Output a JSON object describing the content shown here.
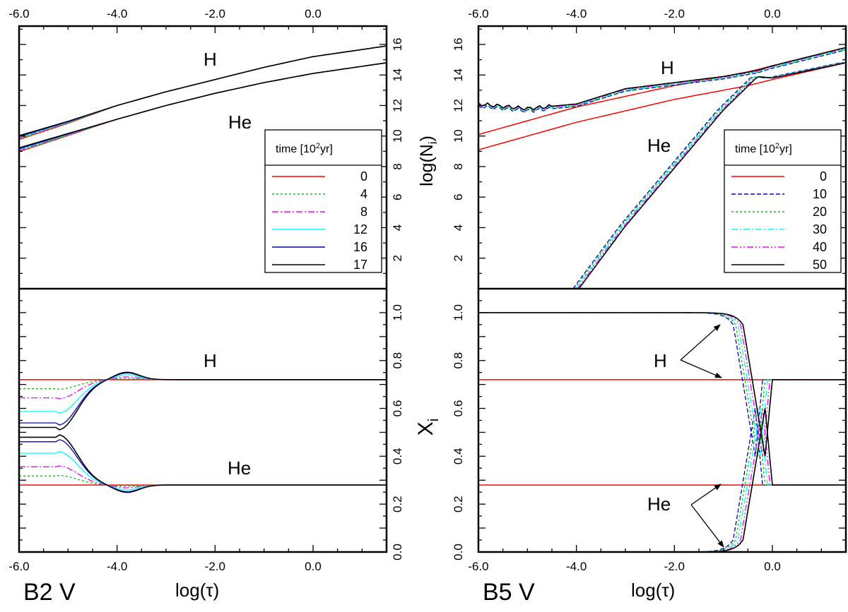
{
  "figure": {
    "colors": {
      "t0": "#ff0000",
      "t1": "#00cc00",
      "t2": "#ff00ff",
      "t3": "#00ffff",
      "t4": "#0000cc",
      "t5": "#000000"
    },
    "xlabel": "log(τ)",
    "left_title": "B2 V",
    "right_title": "B5 V",
    "ylabel_top": "log(N",
    "ylabel_top_sub": "i",
    "ylabel_top_close": ")",
    "ylabel_bottom": "X",
    "ylabel_bottom_sub": "i",
    "legend_title_pre": "time [10",
    "legend_title_sup": "2",
    "legend_title_post": "yr]"
  },
  "chart_data": [
    {
      "panel": "B2 V top",
      "type": "line",
      "xlim": [
        -6.0,
        1.5
      ],
      "ylim": [
        0,
        17.2
      ],
      "xticks": [
        "-6.0",
        "-4.0",
        "-2.0",
        "0.0"
      ],
      "yticks": [
        "2",
        "4",
        "6",
        "8",
        "10",
        "12",
        "14",
        "16"
      ],
      "ylabel": "log(N_i)",
      "labels": [
        "H",
        "He"
      ],
      "legend": [
        "0",
        "4",
        "8",
        "12",
        "16",
        "17"
      ],
      "series": [
        {
          "name": "H",
          "x": [
            -6.0,
            -5.0,
            -4.0,
            -3.0,
            -2.0,
            -1.0,
            0.0,
            1.5
          ],
          "y": [
            9.9,
            10.9,
            12.0,
            12.9,
            13.7,
            14.5,
            15.2,
            15.9
          ]
        },
        {
          "name": "He",
          "x": [
            -6.0,
            -5.0,
            -4.0,
            -3.0,
            -2.0,
            -1.0,
            0.0,
            1.5
          ],
          "y": [
            9.1,
            10.1,
            11.1,
            12.0,
            12.8,
            13.5,
            14.1,
            14.8
          ]
        }
      ]
    },
    {
      "panel": "B5 V top",
      "type": "line",
      "xlim": [
        -6.0,
        1.5
      ],
      "ylim": [
        0,
        17.2
      ],
      "xticks": [
        "-6.0",
        "-4.0",
        "-2.0",
        "0.0"
      ],
      "yticks": [
        "2",
        "4",
        "6",
        "8",
        "10",
        "12",
        "14",
        "16"
      ],
      "ylabel": "log(N_i)",
      "labels": [
        "H",
        "He"
      ],
      "legend": [
        "0",
        "10",
        "20",
        "30",
        "40",
        "50"
      ],
      "series": [
        {
          "name": "H t=0",
          "x": [
            -6.0,
            -4.0,
            -2.0,
            -0.5,
            0.0,
            1.5
          ],
          "y": [
            10.1,
            11.9,
            13.3,
            14.2,
            14.6,
            15.8
          ]
        },
        {
          "name": "He t=0",
          "x": [
            -6.0,
            -4.0,
            -2.0,
            -0.5,
            0.0,
            1.5
          ],
          "y": [
            9.1,
            10.9,
            12.4,
            13.3,
            13.7,
            14.8
          ]
        },
        {
          "name": "H t=50",
          "x": [
            -6.0,
            -5.0,
            -4.0,
            -3.0,
            -2.0,
            -1.0,
            -0.3,
            0.0,
            1.5
          ],
          "y": [
            12.1,
            11.8,
            12.1,
            13.1,
            13.5,
            13.9,
            14.3,
            14.6,
            15.8
          ]
        },
        {
          "name": "He t=50",
          "x": [
            -3.95,
            -3.0,
            -2.0,
            -1.0,
            -0.3,
            0.0,
            1.5
          ],
          "y": [
            0.0,
            4.1,
            7.9,
            11.7,
            13.9,
            13.8,
            14.8
          ]
        }
      ]
    },
    {
      "panel": "B2 V bottom",
      "type": "line",
      "xlim": [
        -6.0,
        1.5
      ],
      "ylim": [
        0.0,
        1.1
      ],
      "xticks": [
        "-6.0",
        "-4.0",
        "-2.0",
        "0.0"
      ],
      "yticks": [
        "0.0",
        "0.2",
        "0.4",
        "0.6",
        "0.8",
        "1.0"
      ],
      "ylabel": "X_i",
      "labels": [
        "H",
        "He"
      ],
      "series": [
        {
          "name": "H t=0",
          "x": [
            -6.0,
            1.5
          ],
          "y": [
            0.72,
            0.72
          ]
        },
        {
          "name": "He t=0",
          "x": [
            -6.0,
            1.5
          ],
          "y": [
            0.28,
            0.28
          ]
        },
        {
          "name": "H t=17",
          "x": [
            -6.0,
            -5.2,
            -4.5,
            -3.8,
            -3.0,
            1.5
          ],
          "y": [
            0.53,
            0.51,
            0.62,
            0.75,
            0.72,
            0.72
          ]
        },
        {
          "name": "He t=17",
          "x": [
            -6.0,
            -5.2,
            -4.5,
            -3.8,
            -3.0,
            1.5
          ],
          "y": [
            0.47,
            0.49,
            0.38,
            0.25,
            0.28,
            0.28
          ]
        }
      ]
    },
    {
      "panel": "B5 V bottom",
      "type": "line",
      "xlim": [
        -6.0,
        1.5
      ],
      "ylim": [
        0.0,
        1.1
      ],
      "xticks": [
        "-6.0",
        "-4.0",
        "-2.0",
        "0.0"
      ],
      "yticks": [
        "0.0",
        "0.2",
        "0.4",
        "0.6",
        "0.8",
        "1.0"
      ],
      "ylabel": "X_i",
      "labels": [
        "H",
        "He"
      ],
      "series": [
        {
          "name": "H t=0",
          "x": [
            -6.0,
            1.5
          ],
          "y": [
            0.72,
            0.72
          ]
        },
        {
          "name": "He t=0",
          "x": [
            -6.0,
            1.5
          ],
          "y": [
            0.28,
            0.28
          ]
        },
        {
          "name": "H t=50",
          "x": [
            -6.0,
            -1.0,
            -0.7,
            -0.4,
            -0.2,
            0.0,
            1.5
          ],
          "y": [
            1.0,
            1.0,
            0.95,
            0.5,
            0.42,
            0.72,
            0.72
          ]
        },
        {
          "name": "He t=50",
          "x": [
            -6.0,
            -1.0,
            -0.7,
            -0.4,
            -0.2,
            0.0,
            1.5
          ],
          "y": [
            0.0,
            0.0,
            0.05,
            0.5,
            0.58,
            0.28,
            0.28
          ]
        }
      ]
    }
  ]
}
